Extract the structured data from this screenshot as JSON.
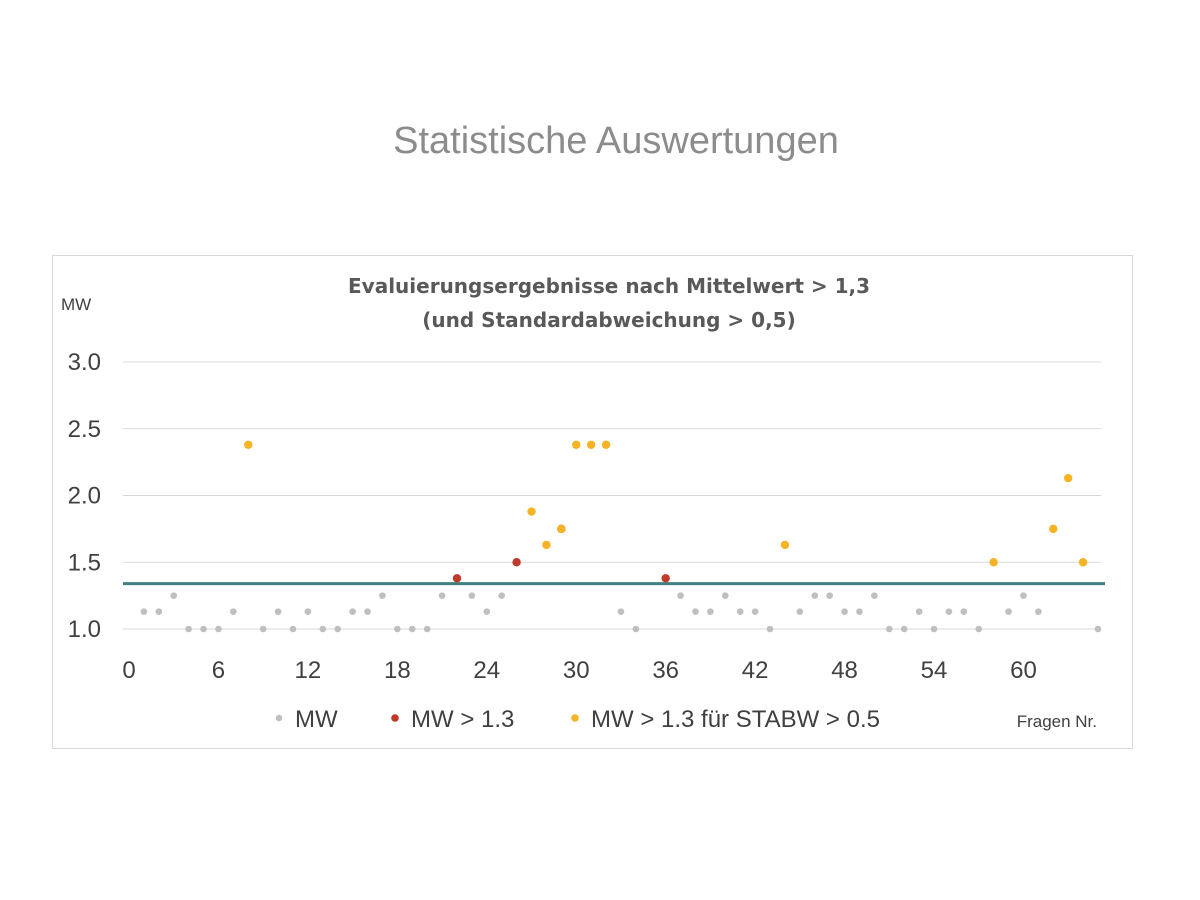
{
  "page": {
    "title": "Statistische Auswertungen"
  },
  "chart_data": {
    "type": "scatter",
    "title_line1": "Evaluierungsergebnisse nach Mittelwert > 1,3",
    "title_line2": "(und Standardabweichung > 0,5)",
    "ylabel": "MW",
    "xlabel": "Fragen Nr.",
    "ylim": [
      1.0,
      3.0
    ],
    "yticks": [
      "1.0",
      "1.5",
      "2.0",
      "2.5",
      "3.0"
    ],
    "ytick_values": [
      1.0,
      1.5,
      2.0,
      2.5,
      3.0
    ],
    "xlim": [
      0,
      65
    ],
    "xticks": [
      "0",
      "6",
      "12",
      "18",
      "24",
      "30",
      "36",
      "42",
      "48",
      "54",
      "60"
    ],
    "xtick_values": [
      0,
      6,
      12,
      18,
      24,
      30,
      36,
      42,
      48,
      54,
      60
    ],
    "threshold": 1.34,
    "grid": true,
    "legend_position": "bottom",
    "colors": {
      "mw": "#bfbfbf",
      "mw_gt": "#c0392b",
      "mw_gt_stabw": "#f5b325",
      "threshold": "#3f7f7f"
    },
    "series": [
      {
        "name": "MW",
        "points": [
          [
            1,
            1.13
          ],
          [
            2,
            1.13
          ],
          [
            3,
            1.25
          ],
          [
            4,
            1.0
          ],
          [
            5,
            1.0
          ],
          [
            6,
            1.0
          ],
          [
            7,
            1.13
          ],
          [
            8,
            2.38
          ],
          [
            9,
            1.0
          ],
          [
            10,
            1.13
          ],
          [
            11,
            1.0
          ],
          [
            12,
            1.13
          ],
          [
            13,
            1.0
          ],
          [
            14,
            1.0
          ],
          [
            15,
            1.13
          ],
          [
            16,
            1.13
          ],
          [
            17,
            1.25
          ],
          [
            18,
            1.0
          ],
          [
            19,
            1.0
          ],
          [
            20,
            1.0
          ],
          [
            21,
            1.25
          ],
          [
            22,
            1.38
          ],
          [
            23,
            1.25
          ],
          [
            24,
            1.13
          ],
          [
            25,
            1.25
          ],
          [
            26,
            1.5
          ],
          [
            27,
            1.88
          ],
          [
            28,
            1.63
          ],
          [
            29,
            1.75
          ],
          [
            30,
            2.38
          ],
          [
            31,
            2.38
          ],
          [
            32,
            2.38
          ],
          [
            33,
            1.13
          ],
          [
            34,
            1.0
          ],
          [
            36,
            1.38
          ],
          [
            37,
            1.25
          ],
          [
            38,
            1.13
          ],
          [
            39,
            1.13
          ],
          [
            40,
            1.25
          ],
          [
            41,
            1.13
          ],
          [
            42,
            1.13
          ],
          [
            43,
            1.0
          ],
          [
            44,
            1.63
          ],
          [
            45,
            1.13
          ],
          [
            46,
            1.25
          ],
          [
            47,
            1.25
          ],
          [
            48,
            1.13
          ],
          [
            49,
            1.13
          ],
          [
            50,
            1.25
          ],
          [
            51,
            1.0
          ],
          [
            52,
            1.0
          ],
          [
            53,
            1.13
          ],
          [
            54,
            1.0
          ],
          [
            55,
            1.13
          ],
          [
            56,
            1.13
          ],
          [
            57,
            1.0
          ],
          [
            58,
            1.5
          ],
          [
            59,
            1.13
          ],
          [
            60,
            1.25
          ],
          [
            61,
            1.13
          ],
          [
            62,
            1.75
          ],
          [
            63,
            2.13
          ],
          [
            64,
            1.5
          ],
          [
            65,
            1.0
          ]
        ]
      },
      {
        "name": "MW > 1.3",
        "points": [
          [
            22,
            1.38
          ],
          [
            26,
            1.5
          ],
          [
            29,
            1.75
          ],
          [
            36,
            1.38
          ]
        ]
      },
      {
        "name": "MW > 1.3 für STABW > 0.5",
        "points": [
          [
            8,
            2.38
          ],
          [
            27,
            1.88
          ],
          [
            28,
            1.63
          ],
          [
            29,
            1.75
          ],
          [
            30,
            2.38
          ],
          [
            31,
            2.38
          ],
          [
            32,
            2.38
          ],
          [
            44,
            1.63
          ],
          [
            58,
            1.5
          ],
          [
            62,
            1.75
          ],
          [
            63,
            2.13
          ],
          [
            64,
            1.5
          ]
        ]
      }
    ]
  }
}
